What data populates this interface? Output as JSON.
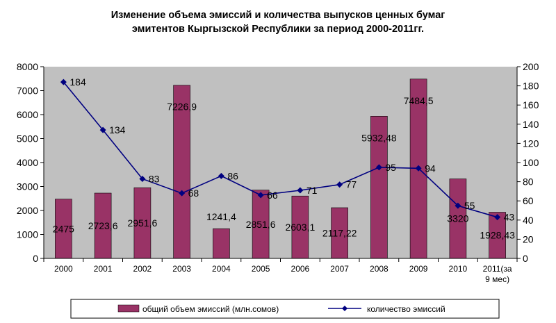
{
  "chart_data": {
    "type": "bar",
    "title_line1": "Изменение объема эмиссий и количества выпусков ценных бумаг",
    "title_line2": "эмитентов Кыргызской Республики за период 2000-2011гг.",
    "categories": [
      "2000",
      "2001",
      "2002",
      "2003",
      "2004",
      "2005",
      "2006",
      "2007",
      "2008",
      "2009",
      "2010",
      "2011(за 9 мес)"
    ],
    "category_lines": [
      [
        "2000"
      ],
      [
        "2001"
      ],
      [
        "2002"
      ],
      [
        "2003"
      ],
      [
        "2004"
      ],
      [
        "2005"
      ],
      [
        "2006"
      ],
      [
        "2007"
      ],
      [
        "2008"
      ],
      [
        "2009"
      ],
      [
        "2010"
      ],
      [
        "2011(за",
        "9 мес)"
      ]
    ],
    "series": [
      {
        "name": "общий объем эмиссий (млн.сомов)",
        "type": "bar",
        "axis": "left",
        "color": "#993366",
        "values": [
          2475,
          2723.6,
          2951.6,
          7226.9,
          1241.4,
          2851.6,
          2603.1,
          2117.22,
          5932.48,
          7484.5,
          3320,
          1928.43
        ],
        "labels": [
          "2475",
          "2723,6",
          "2951,6",
          "7226,9",
          "1241,4",
          "2851,6",
          "2603,1",
          "2117,22",
          "5932,48",
          "7484,5",
          "3320",
          "1928,43"
        ]
      },
      {
        "name": "количество эмиссий",
        "type": "line",
        "axis": "right",
        "color": "#000080",
        "values": [
          184,
          134,
          83,
          68,
          86,
          66,
          71,
          77,
          95,
          94,
          55,
          43
        ],
        "labels": [
          "184",
          "134",
          "83",
          "68",
          "86",
          "66",
          "71",
          "77",
          "95",
          "94",
          "55",
          "43"
        ]
      }
    ],
    "y_left": {
      "min": 0,
      "max": 8000,
      "step": 1000,
      "ticks": [
        "0",
        "1000",
        "2000",
        "3000",
        "4000",
        "5000",
        "6000",
        "7000",
        "8000"
      ]
    },
    "y_right": {
      "min": 0,
      "max": 200,
      "step": 20,
      "ticks": [
        "0",
        "20",
        "40",
        "60",
        "80",
        "100",
        "120",
        "140",
        "160",
        "180",
        "200"
      ]
    },
    "plot_background": "#c0c0c0",
    "grid": false,
    "legend_position": "bottom"
  }
}
